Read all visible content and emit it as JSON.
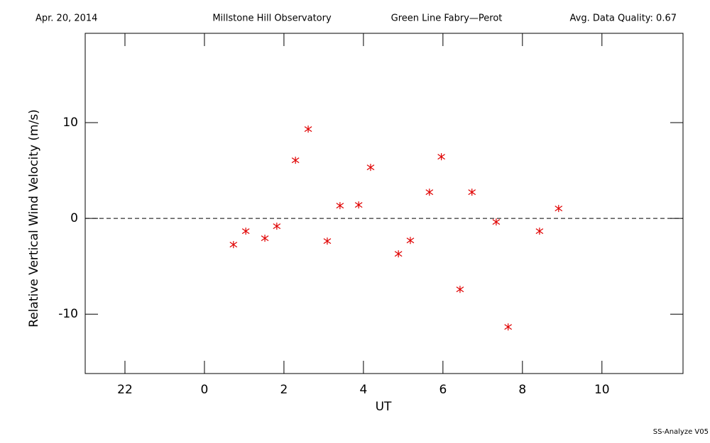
{
  "chart_data": {
    "type": "scatter",
    "date": "Apr. 20, 2014",
    "title": "Millstone Hill Observatory",
    "subtitle": "Green Line Fabry—Perot",
    "quality_note": "Avg. Data Quality: 0.67",
    "footer": "SS-Analyze V05",
    "xlabel": "UT",
    "ylabel": "Relative Vertical Wind Velocity (m/s)",
    "xlim": [
      -3,
      12.04
    ],
    "ylim": [
      -16.2,
      19.33
    ],
    "xticks": [
      {
        "value": -2,
        "label": "22"
      },
      0,
      2,
      4,
      6,
      8,
      10
    ],
    "yticks": [
      -10,
      0,
      10
    ],
    "reference_line": 0,
    "color": "#e00000",
    "x": [
      0.73,
      1.04,
      1.52,
      1.82,
      2.29,
      2.61,
      3.09,
      3.41,
      3.88,
      4.18,
      4.88,
      5.18,
      5.66,
      5.96,
      6.43,
      6.73,
      7.34,
      7.64,
      8.43,
      8.91
    ],
    "values": [
      -2.74,
      -1.33,
      -2.07,
      -0.81,
      6.07,
      9.33,
      -2.37,
      1.33,
      1.41,
      5.33,
      -3.7,
      -2.3,
      2.74,
      6.44,
      -7.41,
      2.74,
      -0.37,
      -11.33,
      -1.33,
      1.04
    ]
  }
}
